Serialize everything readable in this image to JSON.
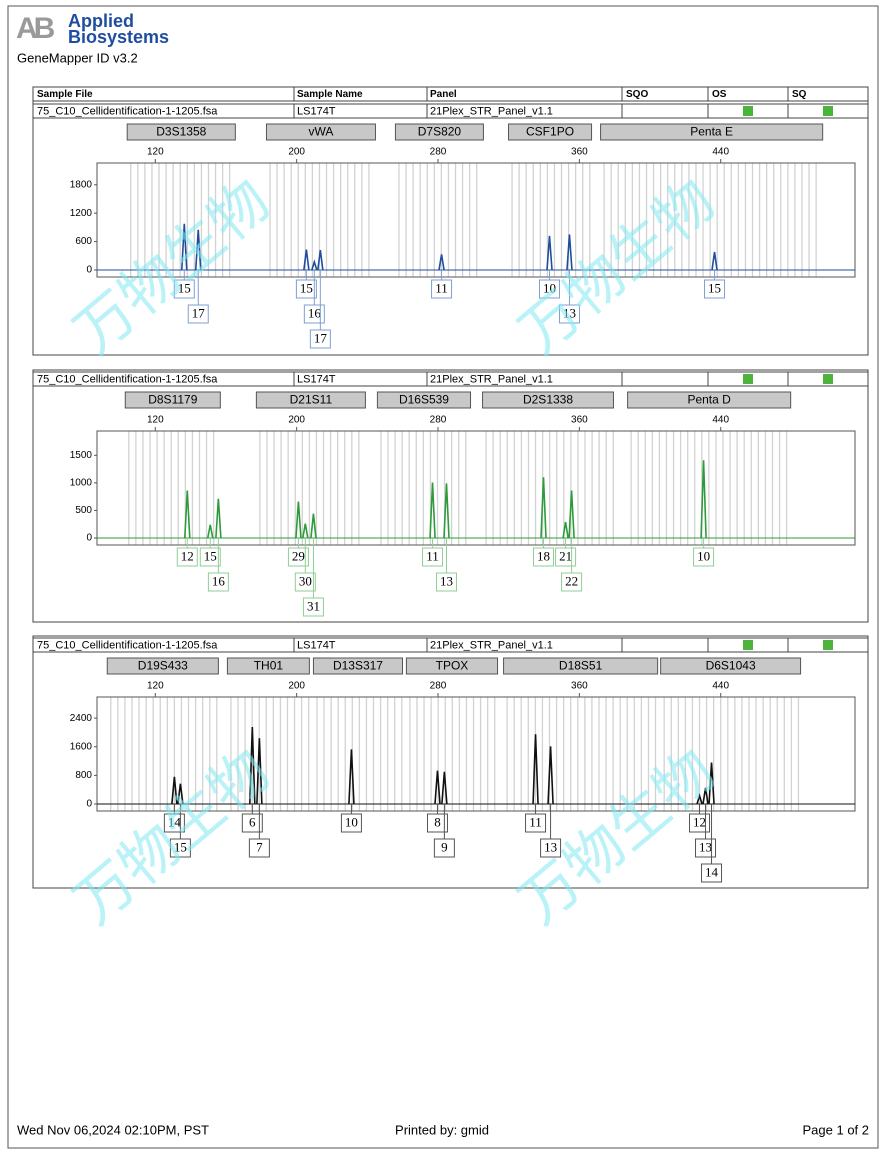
{
  "header": {
    "logo_mark": "AB",
    "brand": [
      "Applied",
      "Biosystems"
    ],
    "app": "GeneMapper ID v3.2"
  },
  "columns": [
    "Sample File",
    "Sample Name",
    "Panel",
    "SQO",
    "OS",
    "SQ"
  ],
  "watermark": "万物生物",
  "chart_data": [
    {
      "type": "electropherogram",
      "sample_file": "75_C10_Cellidentification-1-1205.fsa",
      "sample_name": "LS174T",
      "panel": "21Plex_STR_Panel_v1.1",
      "color": "#1f4e9c",
      "label_color": "#7f9fd6",
      "xlim": [
        87,
        516
      ],
      "xticks": [
        120,
        200,
        280,
        360,
        440
      ],
      "ylim": [
        0,
        2260
      ],
      "yticks": [
        0,
        600,
        1200,
        1800
      ],
      "markers": [
        {
          "name": "D3S1358",
          "range": [
            104.1,
            165.3
          ]
        },
        {
          "name": "vWA",
          "range": [
            182.9,
            244.6
          ]
        },
        {
          "name": "D7S820",
          "range": [
            255.9,
            305.7
          ]
        },
        {
          "name": "CSF1PO",
          "range": [
            319.9,
            366.9
          ]
        },
        {
          "name": "Penta E",
          "range": [
            372,
            497.7
          ]
        }
      ],
      "x": [
        136.4,
        144.3,
        205.5,
        210.0,
        213.4,
        282.0,
        343.1,
        354.4,
        436.5
      ],
      "values": [
        975,
        850,
        430,
        170,
        420,
        330,
        720,
        750,
        380
      ],
      "alleles": [
        15,
        17,
        15,
        16,
        17,
        11,
        10,
        13,
        15
      ]
    },
    {
      "type": "electropherogram",
      "sample_file": "75_C10_Cellidentification-1-1205.fsa",
      "sample_name": "LS174T",
      "panel": "21Plex_STR_Panel_v1.1",
      "color": "#2e9b3a",
      "label_color": "#8fcf95",
      "xlim": [
        87,
        516
      ],
      "xticks": [
        120,
        200,
        280,
        360,
        440
      ],
      "ylim": [
        0,
        1940
      ],
      "yticks": [
        0,
        500,
        1000,
        1500
      ],
      "markers": [
        {
          "name": "D8S1179",
          "range": [
            103.0,
            156.8
          ]
        },
        {
          "name": "D21S11",
          "range": [
            177.2,
            238.9
          ]
        },
        {
          "name": "D16S539",
          "range": [
            245.7,
            298.4
          ]
        },
        {
          "name": "D2S1338",
          "range": [
            305.2,
            379.3
          ]
        },
        {
          "name": "Penta D",
          "range": [
            387.3,
            479.6
          ]
        }
      ],
      "x": [
        138.1,
        151.1,
        155.7,
        201.0,
        204.9,
        209.5,
        276.9,
        284.8,
        339.7,
        352.2,
        355.6,
        430.3
      ],
      "values": [
        860,
        240,
        710,
        660,
        260,
        440,
        1005,
        990,
        1100,
        290,
        860,
        1410
      ],
      "alleles": [
        12,
        15,
        16,
        29,
        30,
        31,
        11,
        13,
        18,
        21,
        22,
        10
      ]
    },
    {
      "type": "electropherogram",
      "sample_file": "75_C10_Cellidentification-1-1205.fsa",
      "sample_name": "LS174T",
      "panel": "21Plex_STR_Panel_v1.1",
      "color": "#111111",
      "label_color": "#555555",
      "xlim": [
        87,
        516
      ],
      "xticks": [
        120,
        200,
        280,
        360,
        440
      ],
      "ylim": [
        0,
        2990
      ],
      "yticks": [
        0,
        800,
        1600,
        2400
      ],
      "markers": [
        {
          "name": "D19S433",
          "range": [
            92.8,
            155.7
          ]
        },
        {
          "name": "TH01",
          "range": [
            160.8,
            207.2
          ]
        },
        {
          "name": "D13S317",
          "range": [
            209.5,
            259.9
          ]
        },
        {
          "name": "TPOX",
          "range": [
            262.1,
            313.7
          ]
        },
        {
          "name": "D18S51",
          "range": [
            317.1,
            404.3
          ]
        },
        {
          "name": "D6S1043",
          "range": [
            406,
            485.2
          ]
        }
      ],
      "x": [
        130.8,
        134.2,
        174.9,
        178.9,
        231.0,
        279.7,
        283.6,
        335.2,
        343.7,
        428.0,
        431.4,
        434.8
      ],
      "values": [
        760,
        565,
        2150,
        1840,
        1525,
        930,
        900,
        1950,
        1610,
        230,
        450,
        1160
      ],
      "alleles": [
        14,
        15,
        6,
        7,
        10,
        8,
        9,
        11,
        13,
        12,
        13,
        14
      ]
    }
  ],
  "footer": {
    "date": "Wed Nov 06,2024 02:10PM, PST",
    "printed_by": "Printed by: gmid",
    "page": "Page 1 of 2"
  }
}
